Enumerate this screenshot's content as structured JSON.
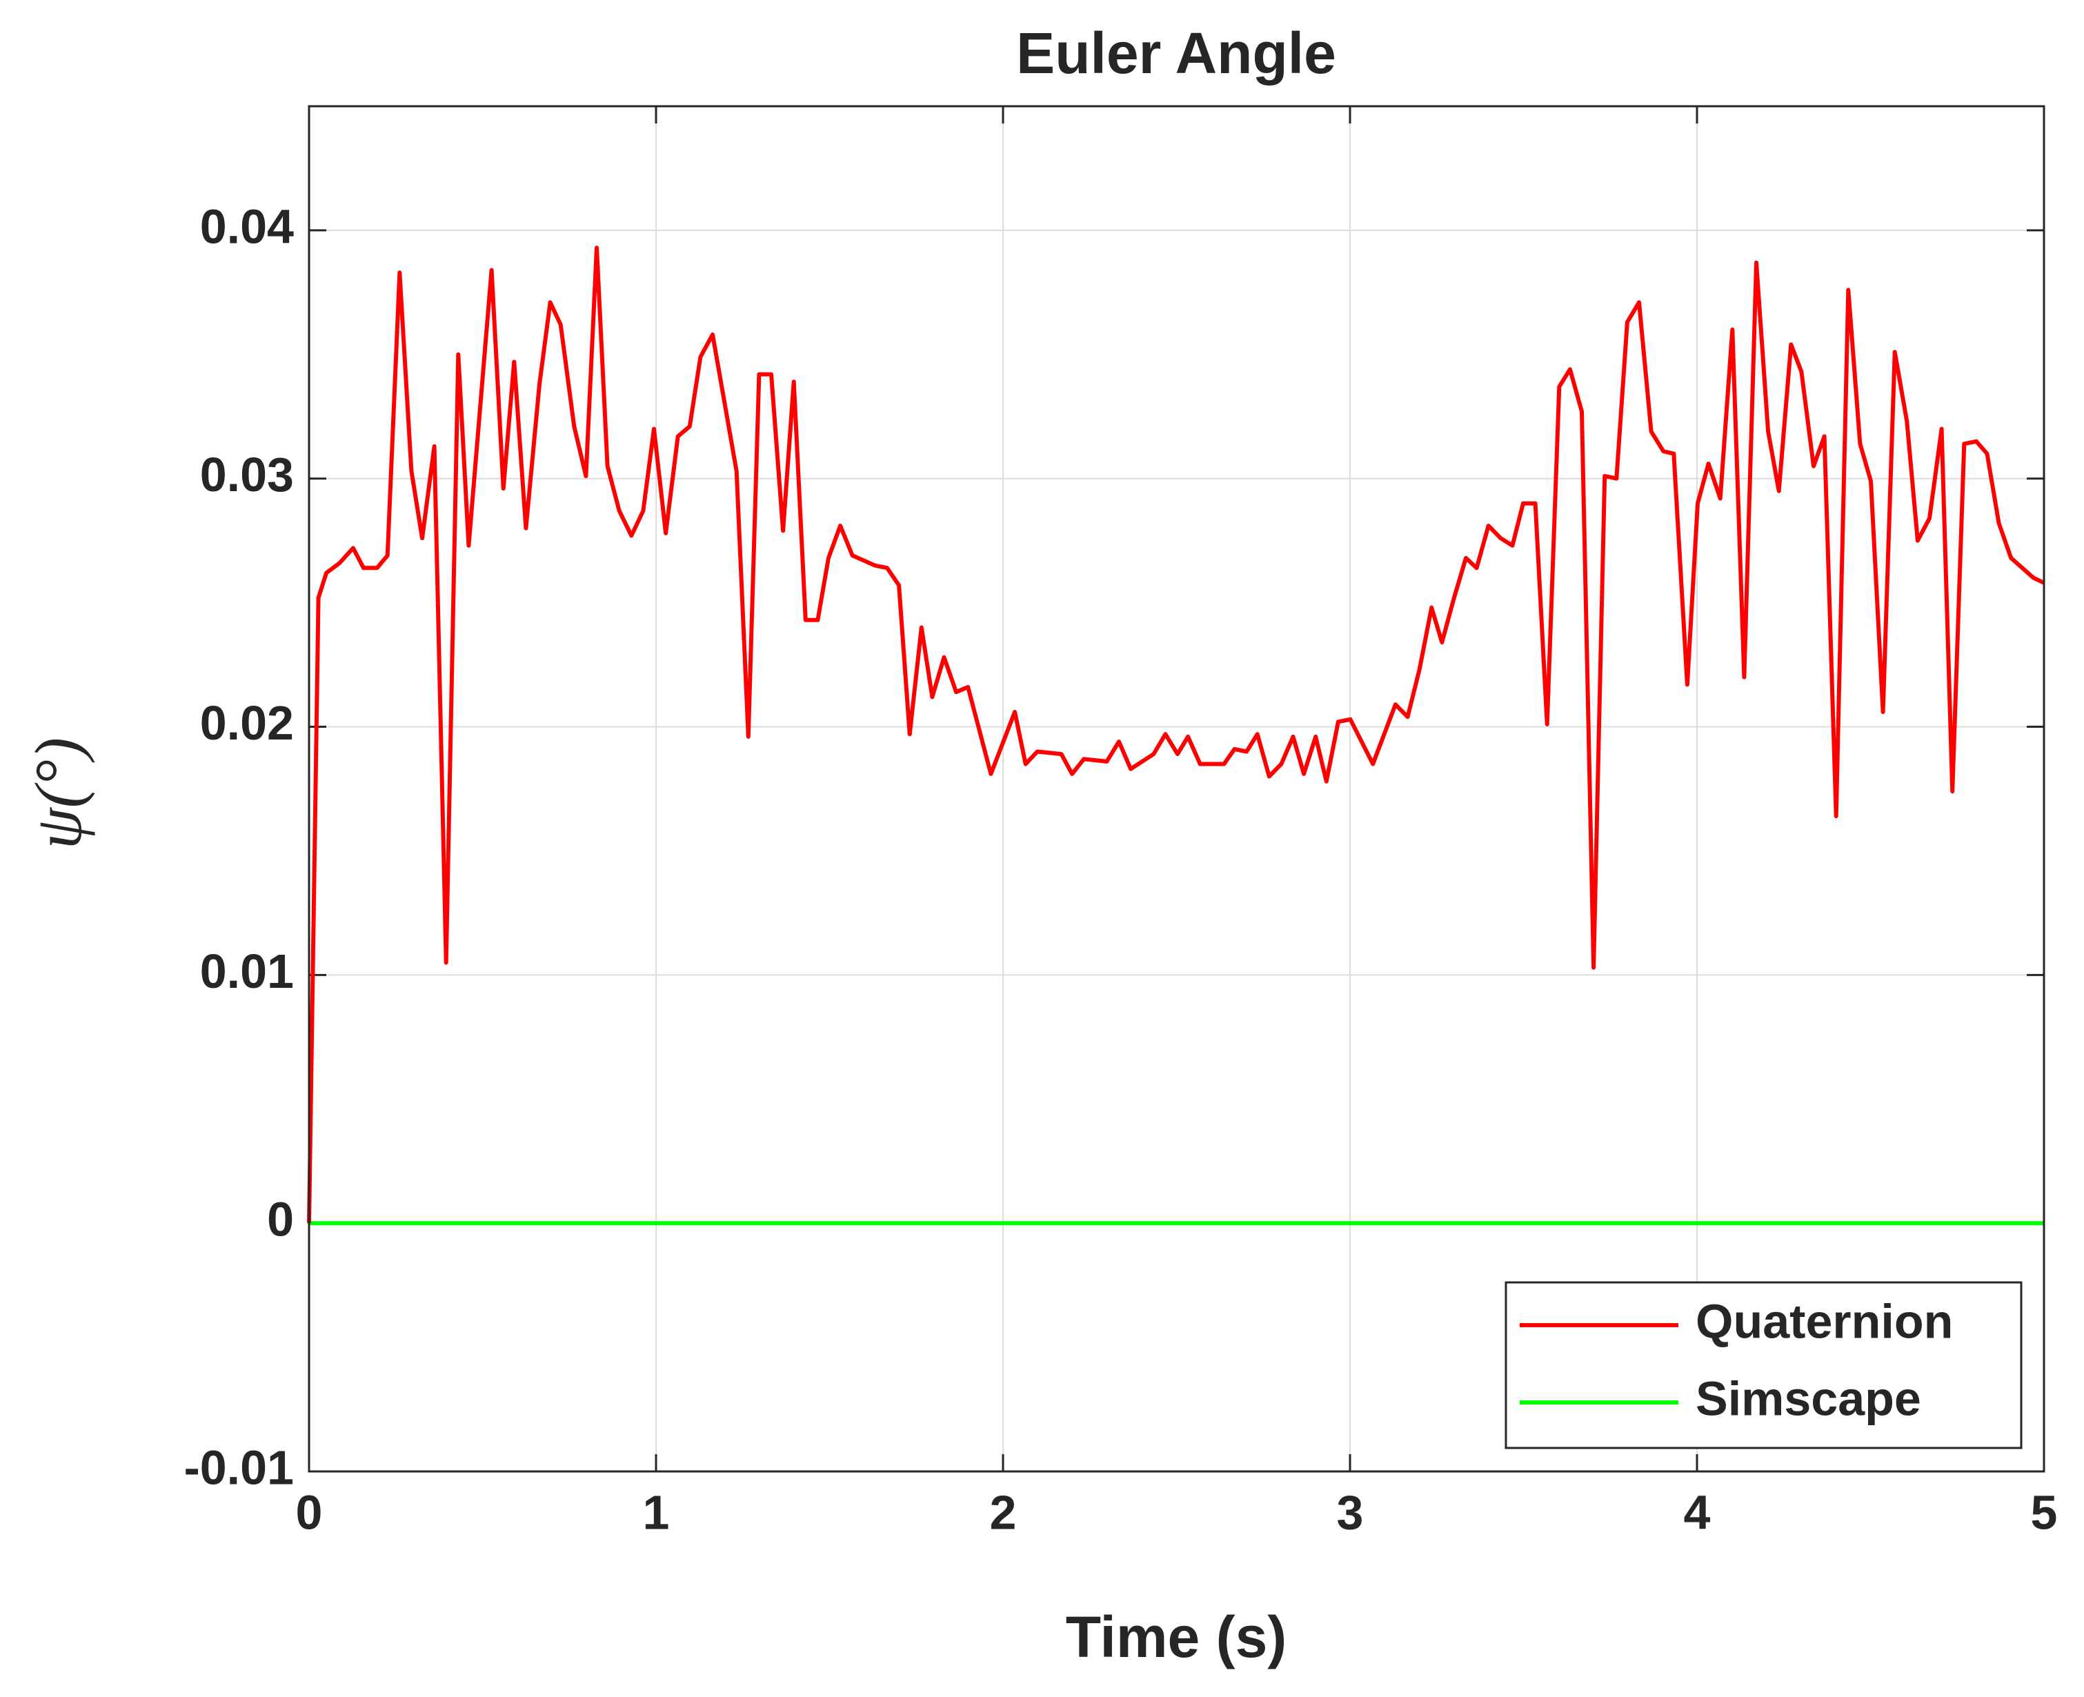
{
  "chart_data": {
    "type": "line",
    "title": "Euler Angle",
    "xlabel": "Time (s)",
    "ylabel": "ψ(°)",
    "xlim": [
      0,
      5
    ],
    "xticks": [
      0,
      1,
      2,
      3,
      4,
      5
    ],
    "ylim": [
      -0.01,
      0.045
    ],
    "yticks": [
      -0.01,
      0,
      0.01,
      0.02,
      0.03,
      0.04
    ],
    "grid": true,
    "legend": "lower right",
    "series": [
      {
        "name": "Quaternion",
        "color": "#ff0000",
        "x": [
          0,
          0.027,
          0.05,
          0.088,
          0.127,
          0.157,
          0.196,
          0.226,
          0.261,
          0.295,
          0.326,
          0.361,
          0.395,
          0.43,
          0.46,
          0.526,
          0.56,
          0.591,
          0.625,
          0.664,
          0.695,
          0.725,
          0.764,
          0.798,
          0.829,
          0.86,
          0.894,
          0.929,
          0.963,
          0.994,
          1.028,
          1.063,
          1.097,
          1.128,
          1.163,
          1.232,
          1.266,
          1.297,
          1.332,
          1.366,
          1.397,
          1.431,
          1.466,
          1.497,
          1.531,
          1.566,
          1.631,
          1.666,
          1.7,
          1.731,
          1.765,
          1.796,
          1.83,
          1.865,
          1.899,
          1.965,
          2.034,
          2.065,
          2.099,
          2.168,
          2.199,
          2.233,
          2.299,
          2.334,
          2.368,
          2.434,
          2.468,
          2.503,
          2.533,
          2.568,
          2.637,
          2.667,
          2.702,
          2.733,
          2.767,
          2.802,
          2.836,
          2.867,
          2.901,
          2.932,
          2.966,
          3.001,
          3.066,
          3.131,
          3.166,
          3.2,
          3.235,
          3.265,
          3.3,
          3.334,
          3.365,
          3.399,
          3.434,
          3.468,
          3.499,
          3.534,
          3.568,
          3.603,
          3.634,
          3.668,
          3.702,
          3.734,
          3.768,
          3.799,
          3.833,
          3.868,
          3.903,
          3.933,
          3.972,
          4.002,
          4.033,
          4.067,
          4.102,
          4.136,
          4.171,
          4.205,
          4.236,
          4.271,
          4.301,
          4.336,
          4.367,
          4.401,
          4.436,
          4.47,
          4.501,
          4.536,
          4.57,
          4.605,
          4.636,
          4.67,
          4.705,
          4.736,
          4.77,
          4.805,
          4.836,
          4.87,
          4.905,
          4.97,
          5
        ],
        "values": [
          0,
          0.0252,
          0.0262,
          0.0266,
          0.0272,
          0.0264,
          0.0264,
          0.0269,
          0.0383,
          0.0303,
          0.0276,
          0.0313,
          0.0105,
          0.035,
          0.0273,
          0.0384,
          0.0296,
          0.0347,
          0.028,
          0.0338,
          0.0371,
          0.0362,
          0.0321,
          0.0301,
          0.0393,
          0.0305,
          0.0287,
          0.0277,
          0.0287,
          0.032,
          0.0278,
          0.0317,
          0.0321,
          0.0349,
          0.0358,
          0.0303,
          0.0196,
          0.0342,
          0.0342,
          0.0279,
          0.0339,
          0.0243,
          0.0243,
          0.0268,
          0.0281,
          0.0269,
          0.0265,
          0.0264,
          0.0257,
          0.0197,
          0.024,
          0.0212,
          0.0228,
          0.0214,
          0.0216,
          0.0181,
          0.0206,
          0.0185,
          0.019,
          0.0189,
          0.0181,
          0.0187,
          0.0186,
          0.0194,
          0.0183,
          0.0189,
          0.0197,
          0.0189,
          0.0196,
          0.0185,
          0.0185,
          0.0191,
          0.019,
          0.0197,
          0.018,
          0.0185,
          0.0196,
          0.0181,
          0.0196,
          0.0178,
          0.0202,
          0.0203,
          0.0185,
          0.0209,
          0.0204,
          0.0223,
          0.0248,
          0.0234,
          0.0252,
          0.0268,
          0.0264,
          0.0281,
          0.0276,
          0.0273,
          0.029,
          0.029,
          0.0201,
          0.0337,
          0.0344,
          0.0327,
          0.0103,
          0.0301,
          0.03,
          0.0363,
          0.0371,
          0.0319,
          0.0311,
          0.031,
          0.0217,
          0.029,
          0.0306,
          0.0292,
          0.036,
          0.022,
          0.0387,
          0.0319,
          0.0295,
          0.0354,
          0.0343,
          0.0305,
          0.0317,
          0.0164,
          0.0376,
          0.0314,
          0.0299,
          0.0206,
          0.0351,
          0.0323,
          0.0275,
          0.0284,
          0.032,
          0.0174,
          0.0314,
          0.0315,
          0.031,
          0.0282,
          0.0268,
          0.026,
          0.0258
        ]
      },
      {
        "name": "Simscape",
        "color": "#00ff00",
        "x": [
          0,
          5
        ],
        "values": [
          0,
          0
        ]
      }
    ]
  }
}
